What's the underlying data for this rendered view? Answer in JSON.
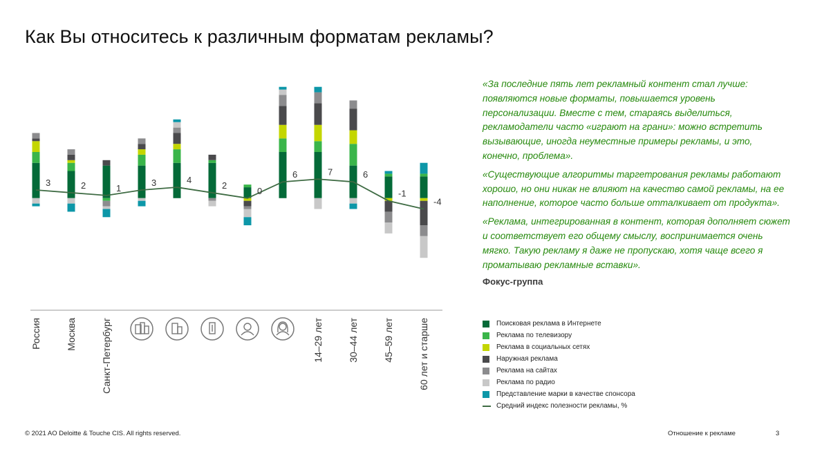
{
  "title": "Как Вы относитесь к различным форматам рекламы?",
  "chart_data": {
    "type": "bar",
    "stacked": true,
    "categories": [
      {
        "label": "Россия",
        "icon": null
      },
      {
        "label": "Москва",
        "icon": null
      },
      {
        "label": "Санкт-Петербург",
        "icon": null
      },
      {
        "label": "",
        "icon": "large-city-icon"
      },
      {
        "label": "",
        "icon": "medium-city-icon"
      },
      {
        "label": "",
        "icon": "small-city-icon"
      },
      {
        "label": "",
        "icon": "male-icon"
      },
      {
        "label": "",
        "icon": "female-icon"
      },
      {
        "label": "14–29 лет",
        "icon": null
      },
      {
        "label": "30–44 лет",
        "icon": null
      },
      {
        "label": "45–59 лет",
        "icon": null
      },
      {
        "label": "60 лет и старше",
        "icon": null
      }
    ],
    "series": [
      {
        "name": "Поисковая реклама в Интернете",
        "color": "#046A38",
        "values": [
          13,
          10,
          12,
          12,
          13,
          13,
          4,
          17,
          17,
          12,
          8,
          8
        ]
      },
      {
        "name": "Реклама по телевизору",
        "color": "#3AB54A",
        "values": [
          4,
          3,
          -1,
          4,
          5,
          1,
          1,
          5,
          4,
          8,
          1,
          1
        ]
      },
      {
        "name": "Реклама в социальных сетях",
        "color": "#C4D600",
        "values": [
          4,
          1,
          0,
          2,
          2,
          0,
          -1,
          5,
          6,
          5,
          -1,
          -1
        ]
      },
      {
        "name": "Наружная реклама",
        "color": "#4A4A4C",
        "values": [
          1,
          2,
          2,
          2,
          4,
          2,
          -2,
          7,
          8,
          8,
          -4,
          -9
        ]
      },
      {
        "name": "Реклама на сайтах",
        "color": "#8C8C8E",
        "values": [
          2,
          2,
          -2,
          2,
          2,
          -1,
          -1,
          4,
          4,
          3,
          -4,
          -4
        ]
      },
      {
        "name": "Реклама по радио",
        "color": "#C8C8C8",
        "values": [
          -2,
          -2,
          -1,
          -1,
          2,
          -2,
          -3,
          2,
          -4,
          -2,
          -4,
          -8
        ]
      },
      {
        "name": "Представление марки в качестве спонсора",
        "color": "#0D97A8",
        "values": [
          -1,
          -3,
          -3,
          -2,
          1,
          0,
          -3,
          1,
          2,
          -2,
          1,
          4
        ]
      }
    ],
    "line": {
      "name": "Средний индекс полезности рекламы, %",
      "color": "#3E6B43",
      "values": [
        3,
        2,
        1,
        3,
        4,
        2,
        0,
        6,
        7,
        6,
        -1,
        -4
      ],
      "labels": [
        "3",
        "2",
        "1",
        "3",
        "4",
        "2",
        "0",
        "6",
        "7",
        "6",
        "-1",
        "-4"
      ]
    },
    "ylim": [
      -39,
      45
    ],
    "grid": false,
    "xlabel": "",
    "ylabel": ""
  },
  "quotes": [
    "«За последние пять лет рекламный контент стал лучше: появляются новые форматы, повышается уровень персонализации. Вместе с тем, стараясь выделиться, рекламодатели часто «играют на грани»: можно встретить вызывающие, иногда неуместные примеры рекламы, и это, конечно, проблема».",
    "«Существующие алгоритмы таргетрования рекламы работают хорошо, но они никак не влияют на качество самой рекламы, на ее наполнение, которое часто больше отталкивает от продукта».",
    "«Реклама, интегрированная в контент, которая дополняет сюжет и соответствует его общему смыслу, воспринимается очень мягко. Такую рекламу я даже не пропускаю, хотя чаще всего я проматываю рекламные вставки»."
  ],
  "source": "Фокус-группа",
  "footer": {
    "copyright": "© 2021 AO Deloitte & Touche CIS. All rights reserved.",
    "section": "Отношение к рекламе",
    "page": "3"
  }
}
